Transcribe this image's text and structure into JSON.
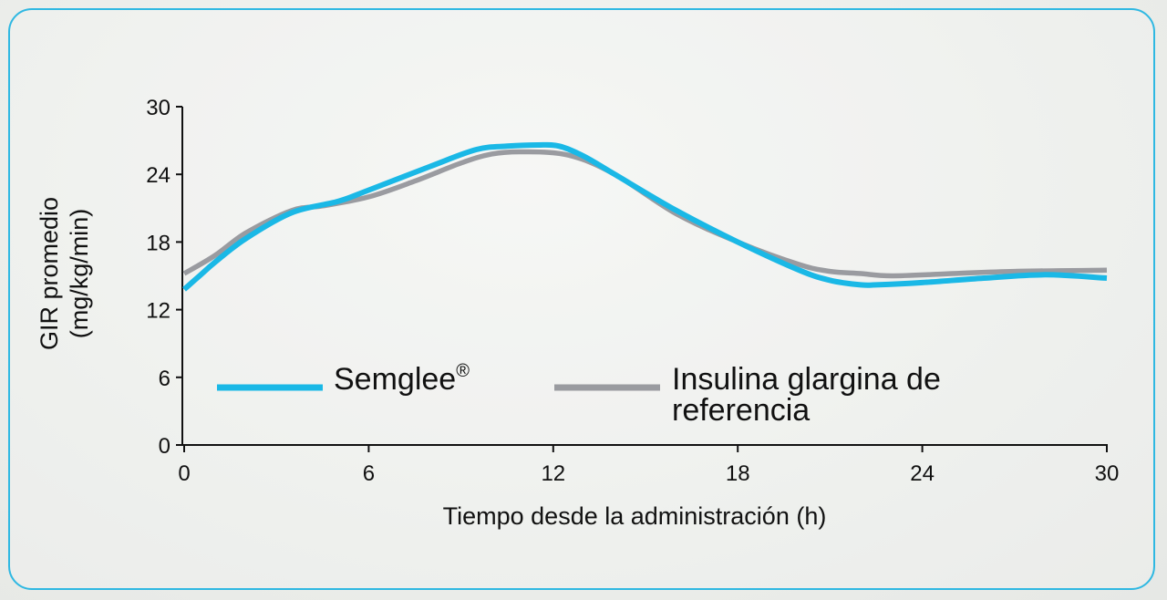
{
  "chart_data": {
    "type": "line",
    "xlabel": "Tiempo desde la administración (h)",
    "ylabel_line1": "GIR promedio",
    "ylabel_line2": "(mg/kg/min)",
    "xlim": [
      0,
      30
    ],
    "ylim": [
      0,
      30
    ],
    "xticks": [
      0,
      6,
      12,
      18,
      24,
      30
    ],
    "yticks": [
      0,
      6,
      12,
      18,
      24,
      30
    ],
    "grid": false,
    "legend_position": "bottom-center",
    "series": [
      {
        "name": "Semglee",
        "name_mark": "®",
        "color": "#1ab8e6",
        "x": [
          0,
          0.5,
          1,
          2,
          3.5,
          5,
          6,
          8,
          9.5,
          10.5,
          11.5,
          12.2,
          13,
          14,
          16,
          18,
          20,
          21,
          22,
          22.5,
          24,
          26,
          28,
          30
        ],
        "y": [
          13.8,
          15,
          16.2,
          18.3,
          20.6,
          21.6,
          22.6,
          24.7,
          26.2,
          26.5,
          26.6,
          26.5,
          25.6,
          24,
          20.8,
          18,
          15.5,
          14.6,
          14.2,
          14.2,
          14.4,
          14.8,
          15.1,
          14.8
        ]
      },
      {
        "name": "Insulina glargina de referencia",
        "name_line1": "Insulina glargina de",
        "name_line2": "referencia",
        "color": "#9a9ba0",
        "x": [
          0,
          1,
          2,
          3.5,
          4.5,
          6,
          7.5,
          9,
          10,
          11,
          12.5,
          14,
          16,
          18,
          20,
          21,
          22,
          23,
          25,
          27,
          30
        ],
        "y": [
          15.2,
          16.8,
          18.8,
          20.8,
          21.2,
          22,
          23.4,
          25,
          25.8,
          26,
          25.7,
          24,
          20.5,
          18,
          16,
          15.4,
          15.2,
          15,
          15.2,
          15.4,
          15.5
        ]
      }
    ]
  }
}
